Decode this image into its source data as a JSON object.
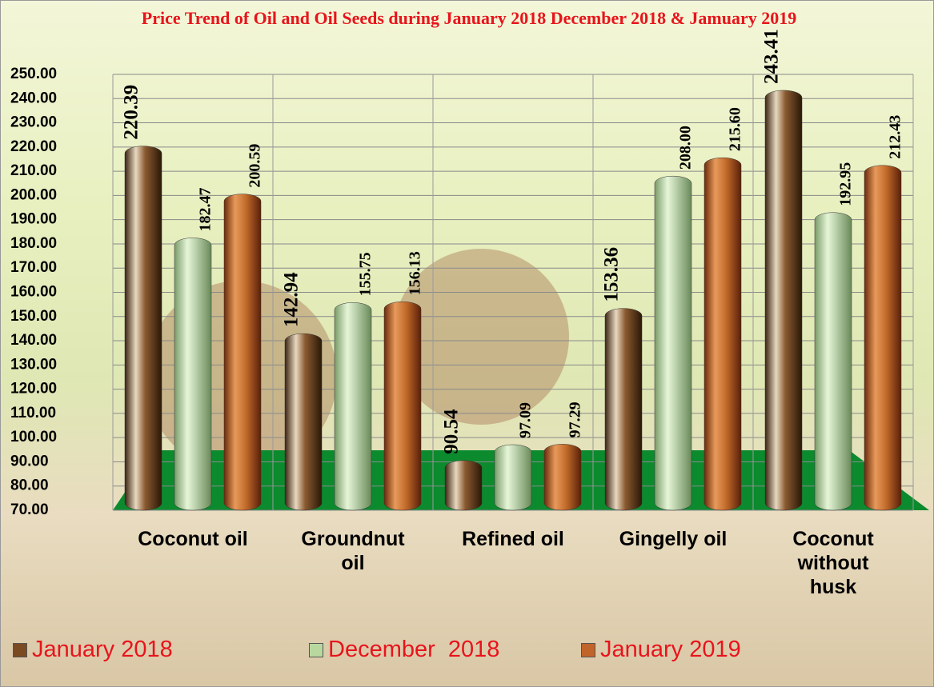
{
  "chart_data": {
    "type": "bar",
    "title": "Price Trend of Oil and Oil Seeds during  January 2018  December 2018 & Jamuary 2019",
    "categories": [
      "Coconut oil",
      "Groundnut oil",
      "Refined oil",
      "Gingelly oil",
      "Coconut without husk"
    ],
    "series": [
      {
        "name": "January 2018",
        "color": "#7a4a22",
        "values": [
          220.39,
          142.94,
          90.54,
          153.36,
          243.41
        ],
        "value_labels": [
          "220.39",
          "142.94",
          "90.54",
          "153.36",
          "243.41"
        ]
      },
      {
        "name": "December  2018",
        "color": "#b8d8a0",
        "values": [
          182.47,
          155.75,
          97.09,
          208,
          192.95
        ],
        "value_labels": [
          "182.47",
          "155.75",
          "97.09",
          "208.00",
          "192.95"
        ]
      },
      {
        "name": "January 2019",
        "color": "#c0642a",
        "values": [
          200.59,
          156.13,
          97.29,
          215.6,
          212.43
        ],
        "value_labels": [
          "200.59",
          "156.13",
          "97.29",
          "215.60",
          "212.43"
        ]
      }
    ],
    "ylim": [
      70,
      250
    ],
    "yticks": [
      {
        "value": 70,
        "label": "70.00"
      },
      {
        "value": 80,
        "label": "80.00"
      },
      {
        "value": 90,
        "label": "90.00"
      },
      {
        "value": 100,
        "label": "100.00"
      },
      {
        "value": 110,
        "label": "110.00"
      },
      {
        "value": 120,
        "label": "120.00"
      },
      {
        "value": 130,
        "label": "130.00"
      },
      {
        "value": 140,
        "label": "140.00"
      },
      {
        "value": 150,
        "label": "150.00"
      },
      {
        "value": 160,
        "label": "160.00"
      },
      {
        "value": 170,
        "label": "170.00"
      },
      {
        "value": 180,
        "label": "180.00"
      },
      {
        "value": 190,
        "label": "190.00"
      },
      {
        "value": 200,
        "label": "200.00"
      },
      {
        "value": 210,
        "label": "210.00"
      },
      {
        "value": 220,
        "label": "220.00"
      },
      {
        "value": 230,
        "label": "230.00"
      },
      {
        "value": 240,
        "label": "240.00"
      },
      {
        "value": 250,
        "label": "250.00"
      }
    ],
    "grid": true
  }
}
